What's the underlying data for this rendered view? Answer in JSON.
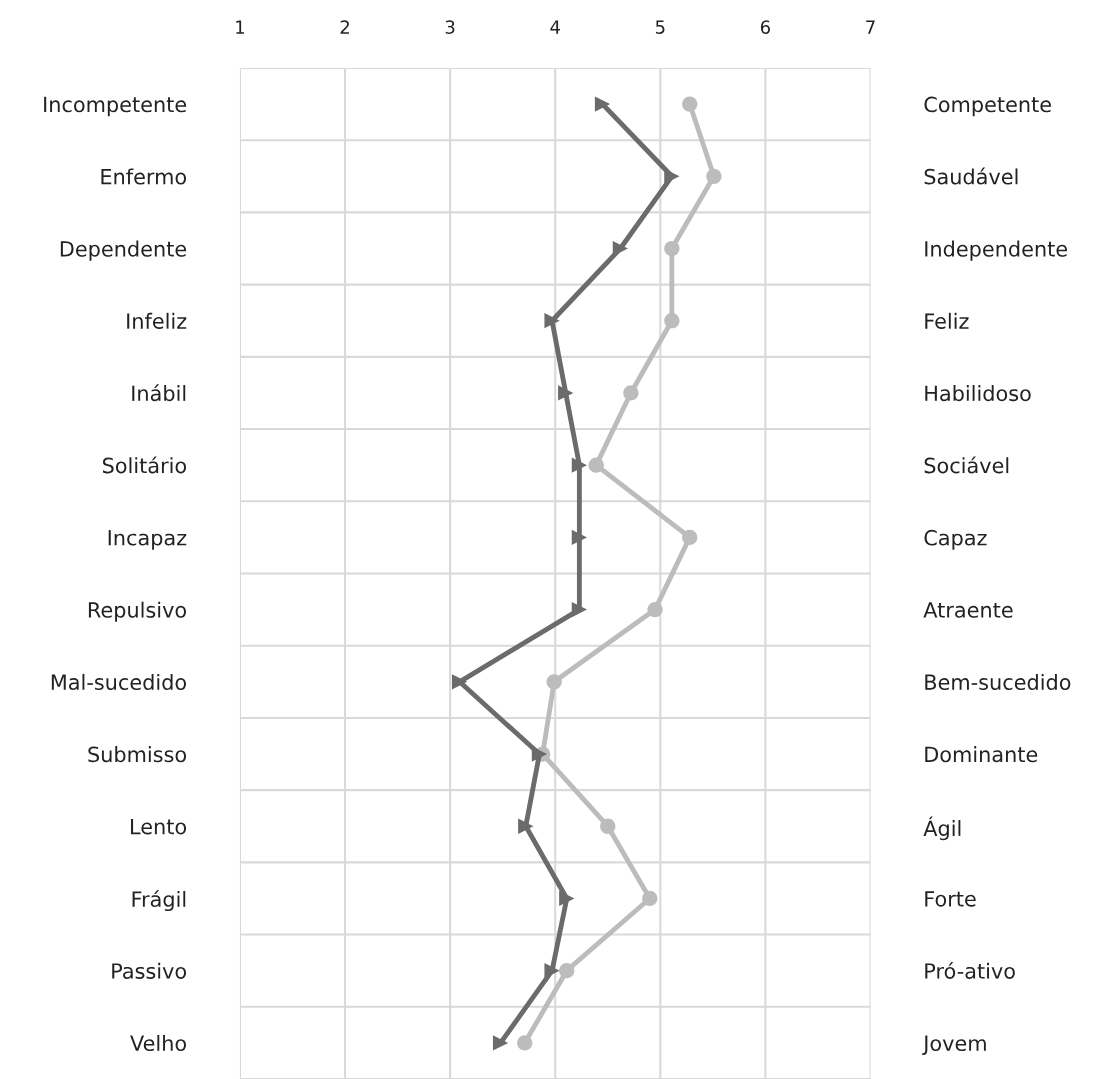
{
  "chart_data": {
    "type": "line",
    "orientation": "horizontal",
    "categories": [
      "Incompetente",
      "Enfermo",
      "Dependente",
      "Infeliz",
      "Inábil",
      "Solitário",
      "Incapaz",
      "Repulsivo",
      "Mal-sucedido",
      "Submisso",
      "Lento",
      "Frágil",
      "Passivo",
      "Velho"
    ],
    "y2_categories": [
      "Competente",
      "Saudável",
      "Independente",
      "Feliz",
      "Habilidoso",
      "Sociável",
      "Capaz",
      "Atraente",
      "Bem-sucedido",
      "Dominante",
      "Ágil",
      "Forte",
      "Pró-ativo",
      "Jovem"
    ],
    "series": [
      {
        "color": "#6b6b6b",
        "marker": "triangle",
        "values": [
          4.45,
          5.11,
          4.62,
          3.97,
          4.1,
          4.23,
          4.23,
          4.23,
          3.09,
          3.85,
          3.72,
          4.11,
          3.97,
          3.48
        ]
      },
      {
        "color": "#bcbcbc",
        "marker": "circle",
        "values": [
          5.28,
          5.51,
          5.11,
          5.11,
          4.72,
          4.39,
          5.28,
          4.95,
          3.99,
          3.88,
          4.5,
          4.9,
          4.11,
          3.71
        ]
      }
    ],
    "xlim": [
      1,
      7
    ],
    "xticks": [
      1,
      2,
      3,
      4,
      5,
      6,
      7
    ],
    "grid": true,
    "legend": false
  }
}
